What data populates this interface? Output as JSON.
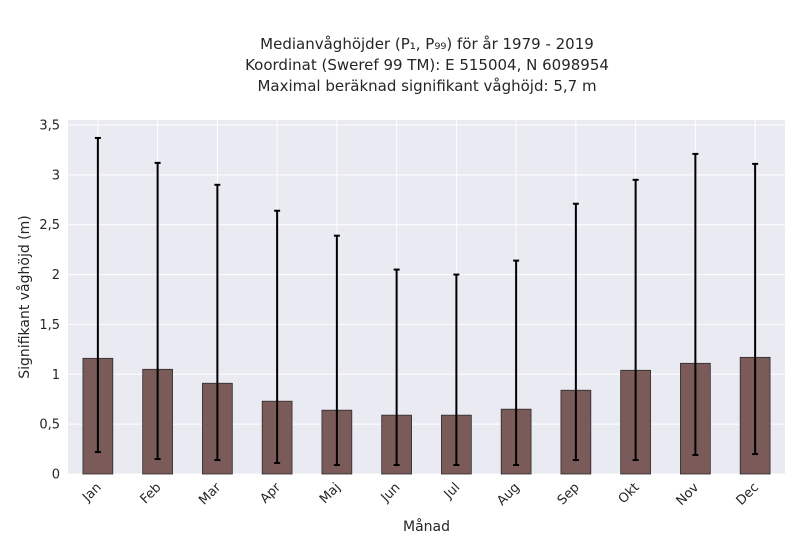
{
  "chart_data": {
    "type": "bar",
    "title_lines": [
      "Medianvåghöjder (P₁, P₉₉) för år 1979 - 2019",
      "Koordinat (Sweref 99 TM): E 515004, N 6098954",
      "Maximal beräknad signifikant våghöjd: 5,7 m"
    ],
    "xlabel": "Månad",
    "ylabel": "Signifikant våghöjd (m)",
    "categories": [
      "Jan",
      "Feb",
      "Mar",
      "Apr",
      "Maj",
      "Jun",
      "Jul",
      "Aug",
      "Sep",
      "Okt",
      "Nov",
      "Dec"
    ],
    "values": [
      1.16,
      1.05,
      0.91,
      0.73,
      0.64,
      0.59,
      0.59,
      0.65,
      0.84,
      1.04,
      1.11,
      1.17
    ],
    "lower": [
      0.22,
      0.15,
      0.14,
      0.11,
      0.09,
      0.09,
      0.09,
      0.09,
      0.14,
      0.14,
      0.19,
      0.2
    ],
    "upper": [
      3.37,
      3.12,
      2.9,
      2.64,
      2.39,
      2.05,
      2.0,
      2.14,
      2.71,
      2.95,
      3.21,
      3.11
    ],
    "ylim": [
      0,
      3.55
    ],
    "yticks": [
      0,
      0.5,
      1,
      1.5,
      2,
      2.5,
      3,
      3.5
    ],
    "ytick_labels": [
      "0",
      "0,5",
      "1",
      "1,5",
      "2",
      "2,5",
      "3",
      "3,5"
    ],
    "grid": true,
    "colors": {
      "bar": "#7b5a5a",
      "bar_edge": "#2b2b2b",
      "error": "#000000",
      "plot_bg": "#eaeaf2",
      "grid": "#ffffff"
    }
  }
}
